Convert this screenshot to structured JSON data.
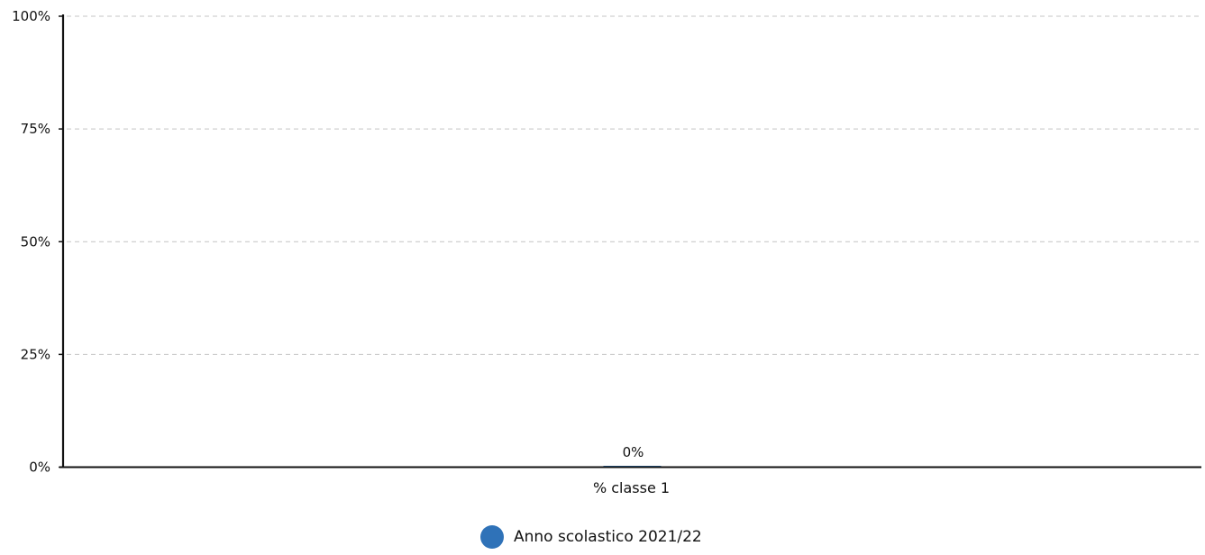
{
  "chart_data": {
    "type": "bar",
    "categories": [
      "% classe 1"
    ],
    "series": [
      {
        "name": "Anno scolastico 2021/22",
        "values": [
          0
        ],
        "data_labels": [
          "0%"
        ],
        "color": "#2f72b8"
      }
    ],
    "y_ticks": [
      0,
      25,
      50,
      75,
      100
    ],
    "y_tick_labels": [
      "0%",
      "25%",
      "50%",
      "75%",
      "100%"
    ],
    "ylim": [
      0,
      100
    ],
    "grid": true,
    "legend_position": "bottom-center",
    "title": "",
    "xlabel": "",
    "ylabel": ""
  }
}
